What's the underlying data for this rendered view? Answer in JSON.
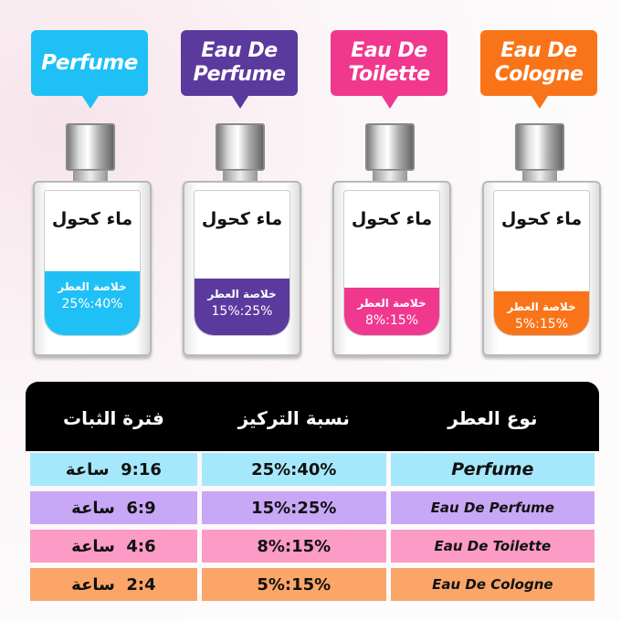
{
  "bottle_text": {
    "water_alcohol": "ماء كحول",
    "essence": "خلاصة العطر"
  },
  "bottles": [
    {
      "label": "Perfume",
      "range": "25%:40%",
      "color": "#1ec0f5"
    },
    {
      "label": "Eau De Perfume",
      "range": "15%:25%",
      "color": "#5b3a9e"
    },
    {
      "label": "Eau De Toilette",
      "range": "8%:15%",
      "color": "#f0388f"
    },
    {
      "label": "Eau De Cologne",
      "range": "5%:15%",
      "color": "#f97418"
    }
  ],
  "table": {
    "headers": {
      "type": "نوع العطر",
      "concentration": "نسبة التركيز",
      "duration": "فترة الثبات"
    },
    "hour_unit": "ساعة",
    "rows": [
      {
        "type": "Perfume",
        "concentration": "25%:40%",
        "duration": "9:16",
        "color": "#a6e8fb"
      },
      {
        "type": "Eau De Perfume",
        "concentration": "15%:25%",
        "duration": "6:9",
        "color": "#c9a7f7"
      },
      {
        "type": "Eau De Toilette",
        "concentration": "8%:15%",
        "duration": "4:6",
        "color": "#fb9bc6"
      },
      {
        "type": "Eau De Cologne",
        "concentration": "5%:15%",
        "duration": "2:4",
        "color": "#fba668"
      }
    ]
  }
}
